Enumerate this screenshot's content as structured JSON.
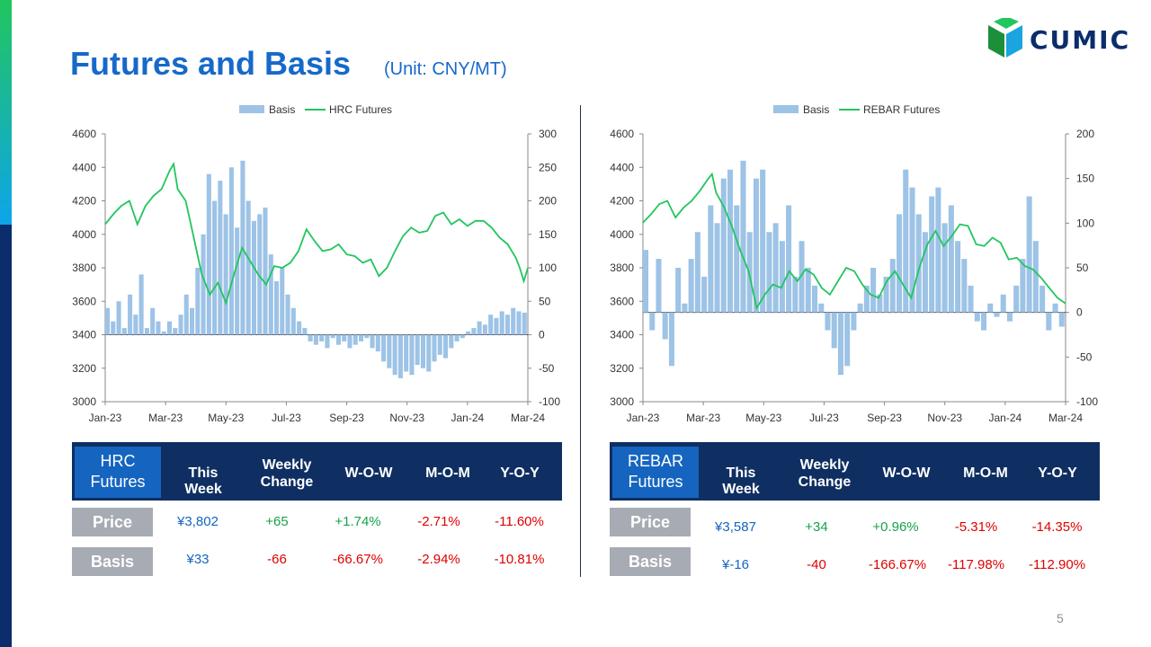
{
  "header": {
    "title": "Futures and Basis",
    "unit": "(Unit: CNY/MT)",
    "logo_text": "CUMIC",
    "page_number": "5"
  },
  "colors": {
    "basis_bar": "#9dc3e6",
    "futures_line": "#22c55e",
    "header_bg": "#0f2f62",
    "header_first": "#1565c0",
    "label_bg": "#a7abb3",
    "blue_text": "#1565c0",
    "green_text": "#16a34a",
    "red_text": "#e00000"
  },
  "chart_data": [
    {
      "type": "bar+line",
      "legend": [
        "Basis",
        "HRC Futures"
      ],
      "x_ticks": [
        "Jan-23",
        "Mar-23",
        "May-23",
        "Jul-23",
        "Sep-23",
        "Nov-23",
        "Jan-24",
        "Mar-24"
      ],
      "y_left_ticks": [
        "4600",
        "4400",
        "4200",
        "4000",
        "3800",
        "3600",
        "3400",
        "3200",
        "3000"
      ],
      "y_right_ticks": [
        "300",
        "250",
        "200",
        "150",
        "100",
        "50",
        "0",
        "-50",
        "-100"
      ],
      "ylim_left": [
        3000,
        4600
      ],
      "ylim_right": [
        -100,
        300
      ],
      "futures_points": [
        [
          0,
          4060
        ],
        [
          2,
          4120
        ],
        [
          4,
          4170
        ],
        [
          6,
          4200
        ],
        [
          8,
          4060
        ],
        [
          10,
          4170
        ],
        [
          12,
          4230
        ],
        [
          14,
          4270
        ],
        [
          16,
          4380
        ],
        [
          17,
          4420
        ],
        [
          18,
          4270
        ],
        [
          20,
          4200
        ],
        [
          22,
          3980
        ],
        [
          24,
          3760
        ],
        [
          26,
          3640
        ],
        [
          28,
          3710
        ],
        [
          30,
          3590
        ],
        [
          32,
          3760
        ],
        [
          34,
          3920
        ],
        [
          36,
          3840
        ],
        [
          38,
          3760
        ],
        [
          40,
          3700
        ],
        [
          42,
          3810
        ],
        [
          44,
          3800
        ],
        [
          46,
          3830
        ],
        [
          48,
          3900
        ],
        [
          50,
          4030
        ],
        [
          52,
          3960
        ],
        [
          54,
          3900
        ],
        [
          56,
          3910
        ],
        [
          58,
          3940
        ],
        [
          60,
          3880
        ],
        [
          62,
          3870
        ],
        [
          64,
          3830
        ],
        [
          66,
          3850
        ],
        [
          68,
          3750
        ],
        [
          70,
          3800
        ],
        [
          72,
          3900
        ],
        [
          74,
          3990
        ],
        [
          76,
          4040
        ],
        [
          78,
          4010
        ],
        [
          80,
          4020
        ],
        [
          82,
          4110
        ],
        [
          84,
          4130
        ],
        [
          86,
          4060
        ],
        [
          88,
          4090
        ],
        [
          90,
          4050
        ],
        [
          92,
          4080
        ],
        [
          94,
          4080
        ],
        [
          96,
          4040
        ],
        [
          98,
          3980
        ],
        [
          100,
          3940
        ],
        [
          102,
          3860
        ],
        [
          103,
          3800
        ],
        [
          104,
          3720
        ],
        [
          105,
          3800
        ]
      ],
      "basis_points": [
        [
          0,
          40
        ],
        [
          1,
          20
        ],
        [
          2,
          50
        ],
        [
          3,
          10
        ],
        [
          4,
          60
        ],
        [
          5,
          30
        ],
        [
          6,
          90
        ],
        [
          7,
          10
        ],
        [
          8,
          40
        ],
        [
          9,
          20
        ],
        [
          10,
          5
        ],
        [
          11,
          20
        ],
        [
          12,
          10
        ],
        [
          13,
          30
        ],
        [
          14,
          60
        ],
        [
          15,
          40
        ],
        [
          16,
          100
        ],
        [
          17,
          150
        ],
        [
          18,
          240
        ],
        [
          19,
          200
        ],
        [
          20,
          230
        ],
        [
          21,
          180
        ],
        [
          22,
          250
        ],
        [
          23,
          160
        ],
        [
          24,
          260
        ],
        [
          25,
          200
        ],
        [
          26,
          170
        ],
        [
          27,
          180
        ],
        [
          28,
          190
        ],
        [
          29,
          120
        ],
        [
          30,
          80
        ],
        [
          31,
          100
        ],
        [
          32,
          60
        ],
        [
          33,
          40
        ],
        [
          34,
          20
        ],
        [
          35,
          10
        ],
        [
          36,
          -10
        ],
        [
          37,
          -15
        ],
        [
          38,
          -10
        ],
        [
          39,
          -20
        ],
        [
          40,
          -5
        ],
        [
          41,
          -15
        ],
        [
          42,
          -10
        ],
        [
          43,
          -20
        ],
        [
          44,
          -15
        ],
        [
          45,
          -10
        ],
        [
          46,
          -5
        ],
        [
          47,
          -20
        ],
        [
          48,
          -25
        ],
        [
          49,
          -40
        ],
        [
          50,
          -50
        ],
        [
          51,
          -60
        ],
        [
          52,
          -65
        ],
        [
          53,
          -55
        ],
        [
          54,
          -60
        ],
        [
          55,
          -45
        ],
        [
          56,
          -50
        ],
        [
          57,
          -55
        ],
        [
          58,
          -40
        ],
        [
          59,
          -30
        ],
        [
          60,
          -35
        ],
        [
          61,
          -20
        ],
        [
          62,
          -10
        ],
        [
          63,
          -5
        ],
        [
          64,
          5
        ],
        [
          65,
          10
        ],
        [
          66,
          20
        ],
        [
          67,
          15
        ],
        [
          68,
          30
        ],
        [
          69,
          25
        ],
        [
          70,
          35
        ],
        [
          71,
          30
        ],
        [
          72,
          40
        ],
        [
          73,
          35
        ],
        [
          74,
          33
        ]
      ]
    },
    {
      "type": "bar+line",
      "legend": [
        "Basis",
        "REBAR Futures"
      ],
      "x_ticks": [
        "Jan-23",
        "Mar-23",
        "May-23",
        "Jul-23",
        "Sep-23",
        "Nov-23",
        "Jan-24",
        "Mar-24"
      ],
      "y_left_ticks": [
        "4600",
        "4400",
        "4200",
        "4000",
        "3800",
        "3600",
        "3400",
        "3200",
        "3000"
      ],
      "y_right_ticks": [
        "200",
        "150",
        "100",
        "50",
        "0",
        "-50",
        "-100"
      ],
      "ylim_left": [
        3000,
        4600
      ],
      "ylim_right": [
        -100,
        200
      ],
      "futures_points": [
        [
          0,
          4070
        ],
        [
          2,
          4120
        ],
        [
          4,
          4180
        ],
        [
          6,
          4200
        ],
        [
          8,
          4100
        ],
        [
          10,
          4160
        ],
        [
          12,
          4200
        ],
        [
          14,
          4260
        ],
        [
          16,
          4330
        ],
        [
          17,
          4360
        ],
        [
          18,
          4250
        ],
        [
          20,
          4160
        ],
        [
          22,
          4040
        ],
        [
          24,
          3900
        ],
        [
          26,
          3780
        ],
        [
          28,
          3560
        ],
        [
          30,
          3640
        ],
        [
          32,
          3700
        ],
        [
          34,
          3680
        ],
        [
          36,
          3780
        ],
        [
          38,
          3720
        ],
        [
          40,
          3790
        ],
        [
          42,
          3760
        ],
        [
          44,
          3680
        ],
        [
          46,
          3640
        ],
        [
          48,
          3720
        ],
        [
          50,
          3800
        ],
        [
          52,
          3780
        ],
        [
          54,
          3700
        ],
        [
          56,
          3640
        ],
        [
          58,
          3620
        ],
        [
          60,
          3720
        ],
        [
          62,
          3780
        ],
        [
          64,
          3700
        ],
        [
          66,
          3620
        ],
        [
          68,
          3800
        ],
        [
          70,
          3940
        ],
        [
          72,
          4020
        ],
        [
          74,
          3930
        ],
        [
          76,
          3990
        ],
        [
          78,
          4060
        ],
        [
          80,
          4050
        ],
        [
          82,
          3940
        ],
        [
          84,
          3930
        ],
        [
          86,
          3980
        ],
        [
          88,
          3950
        ],
        [
          90,
          3850
        ],
        [
          92,
          3860
        ],
        [
          94,
          3810
        ],
        [
          96,
          3790
        ],
        [
          98,
          3740
        ],
        [
          100,
          3680
        ],
        [
          102,
          3620
        ],
        [
          104,
          3587
        ]
      ],
      "basis_points": [
        [
          0,
          70
        ],
        [
          1,
          -20
        ],
        [
          2,
          60
        ],
        [
          3,
          -30
        ],
        [
          4,
          -60
        ],
        [
          5,
          50
        ],
        [
          6,
          10
        ],
        [
          7,
          60
        ],
        [
          8,
          90
        ],
        [
          9,
          40
        ],
        [
          10,
          120
        ],
        [
          11,
          100
        ],
        [
          12,
          150
        ],
        [
          13,
          160
        ],
        [
          14,
          120
        ],
        [
          15,
          170
        ],
        [
          16,
          90
        ],
        [
          17,
          150
        ],
        [
          18,
          160
        ],
        [
          19,
          90
        ],
        [
          20,
          100
        ],
        [
          21,
          80
        ],
        [
          22,
          120
        ],
        [
          23,
          40
        ],
        [
          24,
          80
        ],
        [
          25,
          50
        ],
        [
          26,
          30
        ],
        [
          27,
          10
        ],
        [
          28,
          -20
        ],
        [
          29,
          -40
        ],
        [
          30,
          -70
        ],
        [
          31,
          -60
        ],
        [
          32,
          -20
        ],
        [
          33,
          10
        ],
        [
          34,
          30
        ],
        [
          35,
          50
        ],
        [
          36,
          20
        ],
        [
          37,
          40
        ],
        [
          38,
          60
        ],
        [
          39,
          110
        ],
        [
          40,
          160
        ],
        [
          41,
          140
        ],
        [
          42,
          110
        ],
        [
          43,
          90
        ],
        [
          44,
          130
        ],
        [
          45,
          140
        ],
        [
          46,
          100
        ],
        [
          47,
          120
        ],
        [
          48,
          80
        ],
        [
          49,
          60
        ],
        [
          50,
          30
        ],
        [
          51,
          -10
        ],
        [
          52,
          -20
        ],
        [
          53,
          10
        ],
        [
          54,
          -5
        ],
        [
          55,
          20
        ],
        [
          56,
          -10
        ],
        [
          57,
          30
        ],
        [
          58,
          60
        ],
        [
          59,
          130
        ],
        [
          60,
          80
        ],
        [
          61,
          30
        ],
        [
          62,
          -20
        ],
        [
          63,
          10
        ],
        [
          64,
          -16
        ]
      ]
    }
  ],
  "tables": [
    {
      "first_header": "HRC Futures",
      "headers": [
        "This Week",
        "Weekly Change",
        "W-O-W",
        "M-O-M",
        "Y-O-Y"
      ],
      "rows": [
        {
          "label": "Price",
          "values": [
            "¥3,802",
            "+65",
            "+1.74%",
            "-2.71%",
            "-11.60%"
          ]
        },
        {
          "label": "Basis",
          "values": [
            "¥33",
            "-66",
            "-66.67%",
            "-2.94%",
            "-10.81%"
          ]
        }
      ]
    },
    {
      "first_header": "REBAR Futures",
      "headers": [
        "This Week",
        "Weekly Change",
        "W-O-W",
        "M-O-M",
        "Y-O-Y"
      ],
      "rows": [
        {
          "label": "Price",
          "values": [
            "¥3,587",
            "+34",
            "+0.96%",
            "-5.31%",
            "-14.35%"
          ]
        },
        {
          "label": "Basis",
          "values": [
            "¥-16",
            "-40",
            "-166.67%",
            "-117.98%",
            "-112.90%"
          ]
        }
      ]
    }
  ]
}
